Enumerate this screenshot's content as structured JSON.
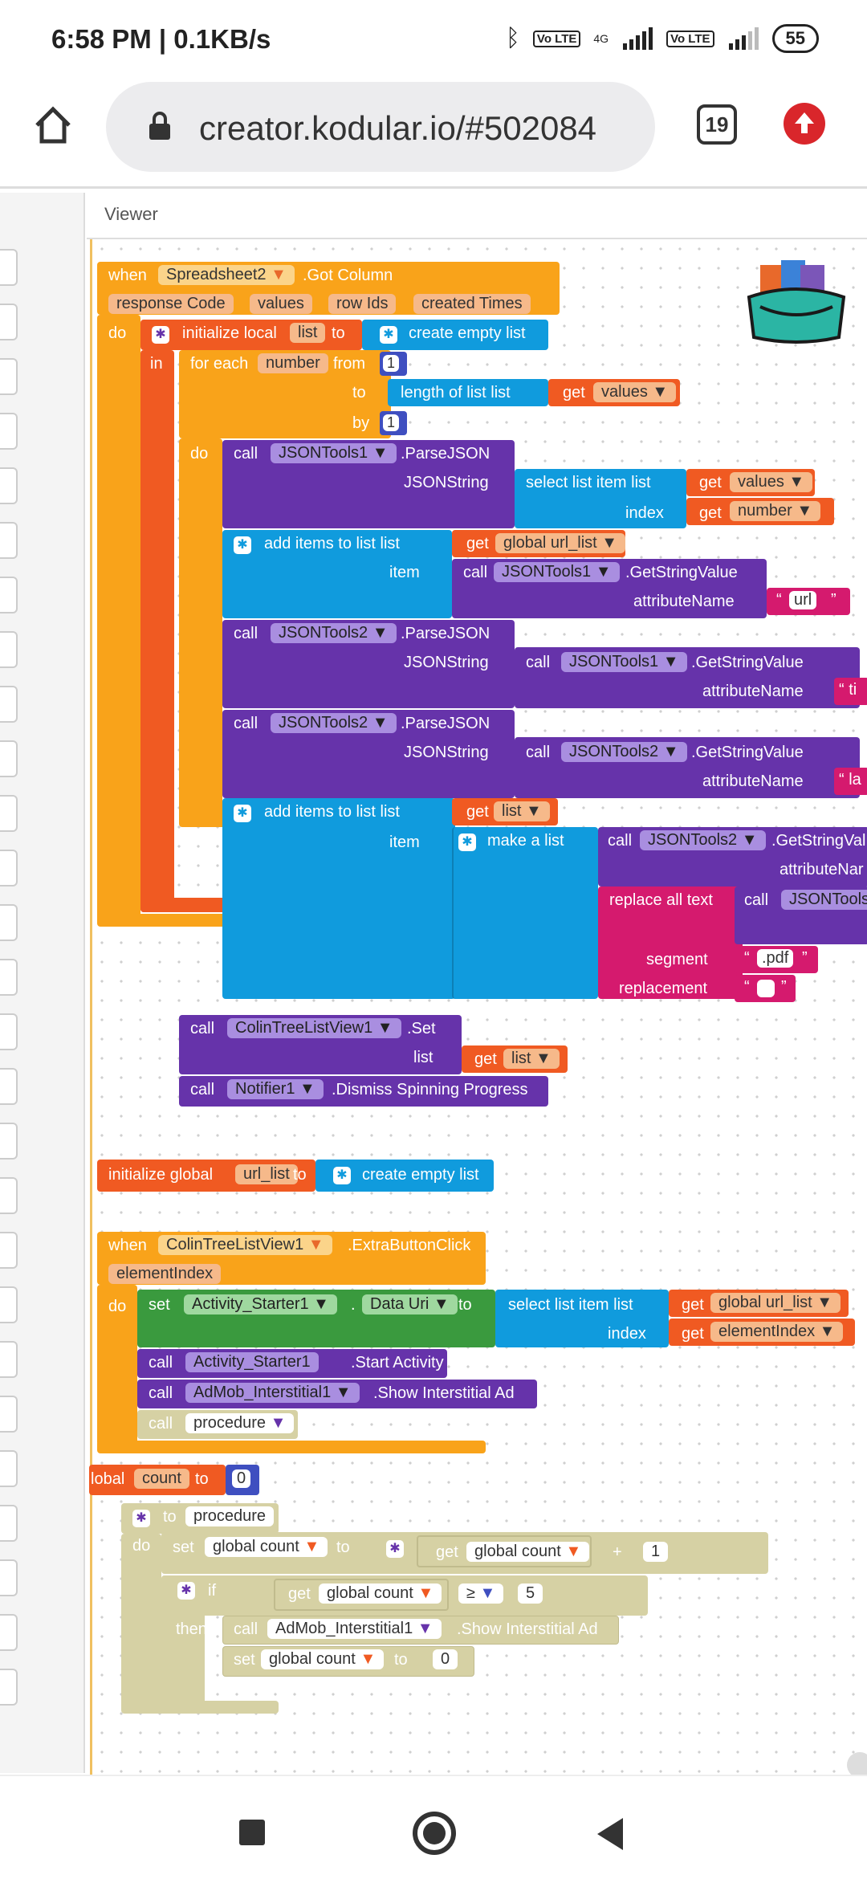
{
  "status": {
    "time": "6:58 PM | 0.1KB/s",
    "net1": "4G",
    "vo1": "Vo LTE",
    "vo2": "Vo LTE",
    "battery": "55"
  },
  "browser": {
    "url": "creator.kodular.io/#502084",
    "tabs": "19"
  },
  "viewer": {
    "title": "Viewer"
  },
  "event1": {
    "when": "when",
    "component": "Spreadsheet2",
    "event": ".Got Column",
    "params": [
      "response Code",
      "values",
      "row Ids",
      "created Times"
    ],
    "do": "do",
    "in": "in",
    "init_local": "initialize local",
    "list_name": "list",
    "to": "to",
    "create_empty": "create empty list",
    "foreach": "for each",
    "var": "number",
    "from": "from",
    "from_val": "1",
    "to_lbl": "to",
    "length_of": "length of list  list",
    "get": "get",
    "values": "values",
    "by": "by",
    "by_val": "1",
    "do2": "do",
    "call": "call",
    "json1": "JSONTools1",
    "json2": "JSONTools2",
    "parse": ".ParseJSON",
    "jsonstring": "JSONString",
    "select_item": "select list item  list",
    "index": "index",
    "number": "number",
    "add_items": "add items to list   list",
    "global_url": "global url_list",
    "item": "item",
    "getstring": ".GetStringValue",
    "attr": "attributeName",
    "url": "url",
    "t_frag": "ti",
    "l_frag": "la",
    "list_get": "list",
    "make_list": "make a list",
    "getstringval_frag": ".GetStringVal",
    "attr_frag": "attributeNar",
    "replace_all": "replace all text",
    "jsontools_frag": "JSONTools",
    "segment": "segment",
    "pdf": ".pdf",
    "replacement": "replacement",
    "colin": "ColinTreeListView1",
    "set": ".Set",
    "list_lbl": "list",
    "notifier": "Notifier1",
    "dismiss": ".Dismiss Spinning Progress"
  },
  "global1": {
    "init": "initialize global",
    "name": "url_list",
    "to": "to",
    "create": "create empty list"
  },
  "event2": {
    "when": "when",
    "component": "ColinTreeListView1",
    "event": ".ExtraButtonClick",
    "param": "elementIndex",
    "do": "do",
    "set": "set",
    "activity": "Activity_Starter1",
    "dot": ".",
    "prop": "Data Uri",
    "to": "to",
    "select": "select list item  list",
    "get": "get",
    "global_url": "global url_list",
    "index": "index",
    "elementIndex": "elementIndex",
    "call": "call",
    "start": ".Start Activity",
    "admob": "AdMob_Interstitial1",
    "show": ".Show Interstitial Ad",
    "procedure": "procedure"
  },
  "global2": {
    "frag": "lobal",
    "name": "count",
    "to": "to",
    "value": "0"
  },
  "proc": {
    "to": "to",
    "name": "procedure",
    "do": "do",
    "set": "set",
    "global_count": "global count",
    "to2": "to",
    "get": "get",
    "plus": "+",
    "one": "1",
    "if": "if",
    "ge": "≥",
    "five": "5",
    "then": "then",
    "call": "call",
    "admob": "AdMob_Interstitial1",
    "show": ".Show Interstitial Ad",
    "zero": "0"
  },
  "colors": {
    "event": "#f9a31a",
    "variable": "#f05a22",
    "list": "#109bdd",
    "component": "#6633aa",
    "text": "#d51a6e",
    "setter": "#3a9a3e",
    "math": "#3f4fc0"
  }
}
